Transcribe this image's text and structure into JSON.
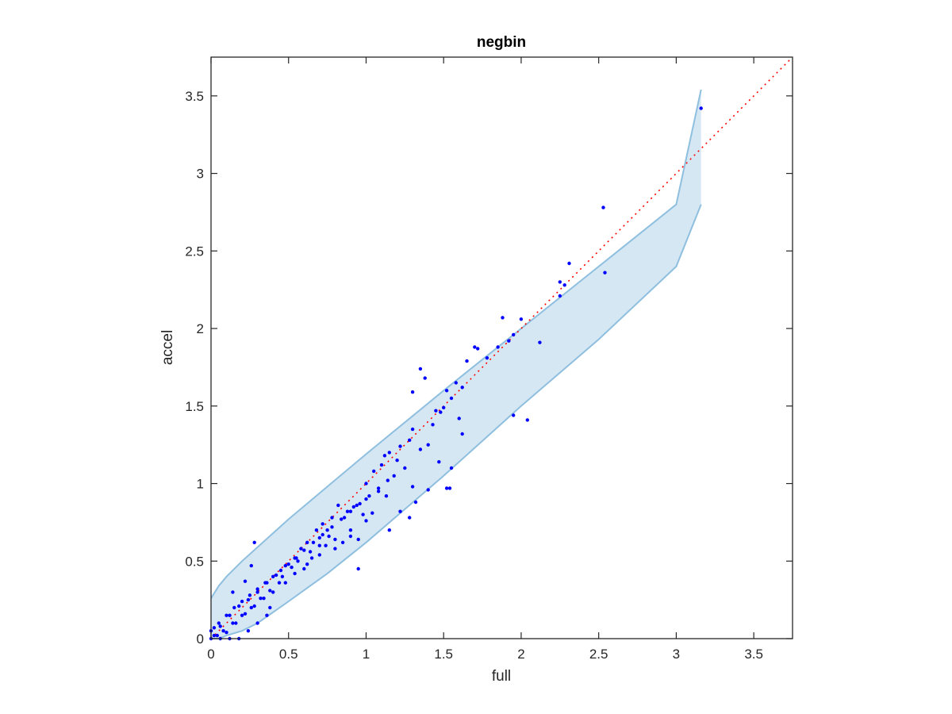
{
  "chart_data": {
    "type": "scatter",
    "title": "negbin",
    "xlabel": "full",
    "ylabel": "accel",
    "xlim": [
      0,
      3.75
    ],
    "ylim": [
      0,
      3.75
    ],
    "xticks": [
      0,
      0.5,
      1,
      1.5,
      2,
      2.5,
      3,
      3.5
    ],
    "yticks": [
      0,
      0.5,
      1,
      1.5,
      2,
      2.5,
      3,
      3.5
    ],
    "xtick_labels": [
      "0",
      "0.5",
      "1",
      "1.5",
      "2",
      "2.5",
      "3",
      "3.5"
    ],
    "ytick_labels": [
      "0",
      "0.5",
      "1",
      "1.5",
      "2",
      "2.5",
      "3",
      "3.5"
    ],
    "grid": false,
    "reference_line": {
      "style": "dotted",
      "color": "#ff0000",
      "from": [
        0,
        0
      ],
      "to": [
        3.75,
        3.75
      ]
    },
    "band": {
      "fill": "#d6e7f4",
      "edge": "#8fbfdf",
      "x": [
        0,
        0.05,
        0.1,
        0.2,
        0.3,
        0.5,
        0.75,
        1,
        1.5,
        2,
        2.5,
        3,
        3.16
      ],
      "upper": [
        0.26,
        0.34,
        0.4,
        0.5,
        0.59,
        0.77,
        0.98,
        1.19,
        1.6,
        2.0,
        2.4,
        2.8,
        3.54
      ],
      "lower": [
        0,
        0,
        0.02,
        0.05,
        0.1,
        0.24,
        0.42,
        0.62,
        1.05,
        1.5,
        1.93,
        2.4,
        2.8
      ],
      "x_end": 3.16
    },
    "series": [
      {
        "color": "#0000ff",
        "x": [
          3.16,
          2.53,
          2.54,
          2.31,
          2.25,
          2.25,
          2.28,
          1.88,
          1.95,
          2.0,
          1.92,
          1.85,
          2.12,
          1.95,
          2.04,
          1.72,
          1.78,
          1.65,
          1.7,
          1.62,
          1.58,
          1.52,
          1.5,
          1.55,
          1.6,
          1.62,
          1.48,
          1.43,
          1.45,
          1.35,
          1.38,
          1.3,
          1.3,
          1.35,
          1.4,
          1.28,
          1.22,
          1.15,
          1.12,
          1.2,
          1.25,
          1.18,
          1.1,
          1.05,
          1.0,
          1.08,
          1.13,
          1.3,
          1.32,
          1.4,
          1.52,
          1.54,
          1.47,
          1.55,
          1.22,
          1.28,
          1.15,
          0.95,
          0.9,
          0.85,
          0.8,
          0.75,
          0.7,
          0.65,
          0.6,
          0.95,
          0.98,
          1.0,
          0.94,
          0.88,
          0.82,
          0.78,
          0.72,
          0.68,
          0.62,
          0.58,
          0.55,
          0.5,
          0.45,
          0.4,
          0.35,
          0.3,
          0.25,
          0.2,
          0.15,
          0.1,
          0.05,
          0.02,
          0.0,
          0.06,
          0.12,
          0.18,
          0.24,
          0.3,
          0.36,
          0.42,
          0.48,
          0.54,
          0.6,
          0.66,
          0.72,
          0.78,
          0.84,
          0.9,
          0.96,
          1.02,
          1.08,
          1.14,
          0.86,
          0.92,
          0.76,
          0.7,
          0.64,
          0.56,
          0.52,
          0.46,
          0.44,
          0.38,
          0.32,
          0.28,
          0.22,
          0.16,
          0.08,
          0.04,
          0.1,
          0.14,
          0.2,
          0.26,
          0.34,
          0.4,
          0.48,
          0.54,
          0.62,
          0.7,
          0.74,
          0.8,
          0.9,
          1.0,
          1.04,
          0.36,
          0.3,
          0.24,
          0.18,
          0.12,
          0.06,
          0.02,
          0.0,
          0.28,
          0.26,
          0.22,
          0.14,
          0.38
        ],
        "y": [
          3.42,
          2.78,
          2.36,
          2.42,
          2.3,
          2.21,
          2.28,
          2.07,
          1.44,
          2.06,
          1.92,
          1.88,
          1.91,
          1.96,
          1.41,
          1.87,
          1.81,
          1.79,
          1.88,
          1.62,
          1.65,
          1.6,
          1.49,
          1.55,
          1.42,
          1.32,
          1.46,
          1.38,
          1.47,
          1.74,
          1.68,
          1.59,
          1.35,
          1.22,
          1.25,
          1.28,
          1.24,
          1.2,
          1.18,
          1.15,
          1.1,
          1.05,
          1.12,
          1.08,
          1.0,
          0.95,
          0.92,
          0.98,
          0.88,
          0.96,
          0.97,
          0.97,
          1.14,
          1.1,
          0.82,
          0.78,
          0.7,
          0.45,
          0.66,
          0.62,
          0.58,
          0.7,
          0.65,
          0.52,
          0.45,
          0.64,
          0.8,
          0.9,
          0.86,
          0.82,
          0.86,
          0.78,
          0.74,
          0.7,
          0.62,
          0.58,
          0.52,
          0.48,
          0.44,
          0.4,
          0.36,
          0.32,
          0.28,
          0.24,
          0.2,
          0.15,
          0.1,
          0.07,
          0.0,
          0.08,
          0.15,
          0.21,
          0.25,
          0.3,
          0.36,
          0.41,
          0.47,
          0.52,
          0.57,
          0.62,
          0.67,
          0.72,
          0.77,
          0.82,
          0.87,
          0.92,
          0.97,
          1.02,
          0.78,
          0.85,
          0.66,
          0.6,
          0.56,
          0.5,
          0.46,
          0.4,
          0.36,
          0.31,
          0.26,
          0.21,
          0.16,
          0.1,
          0.05,
          0.02,
          0.04,
          0.1,
          0.15,
          0.2,
          0.26,
          0.3,
          0.36,
          0.42,
          0.48,
          0.54,
          0.6,
          0.64,
          0.7,
          0.76,
          0.81,
          0.15,
          0.1,
          0.05,
          0.0,
          0.0,
          0.0,
          0.02,
          0.05,
          0.62,
          0.47,
          0.37,
          0.3,
          0.2
        ]
      }
    ]
  }
}
